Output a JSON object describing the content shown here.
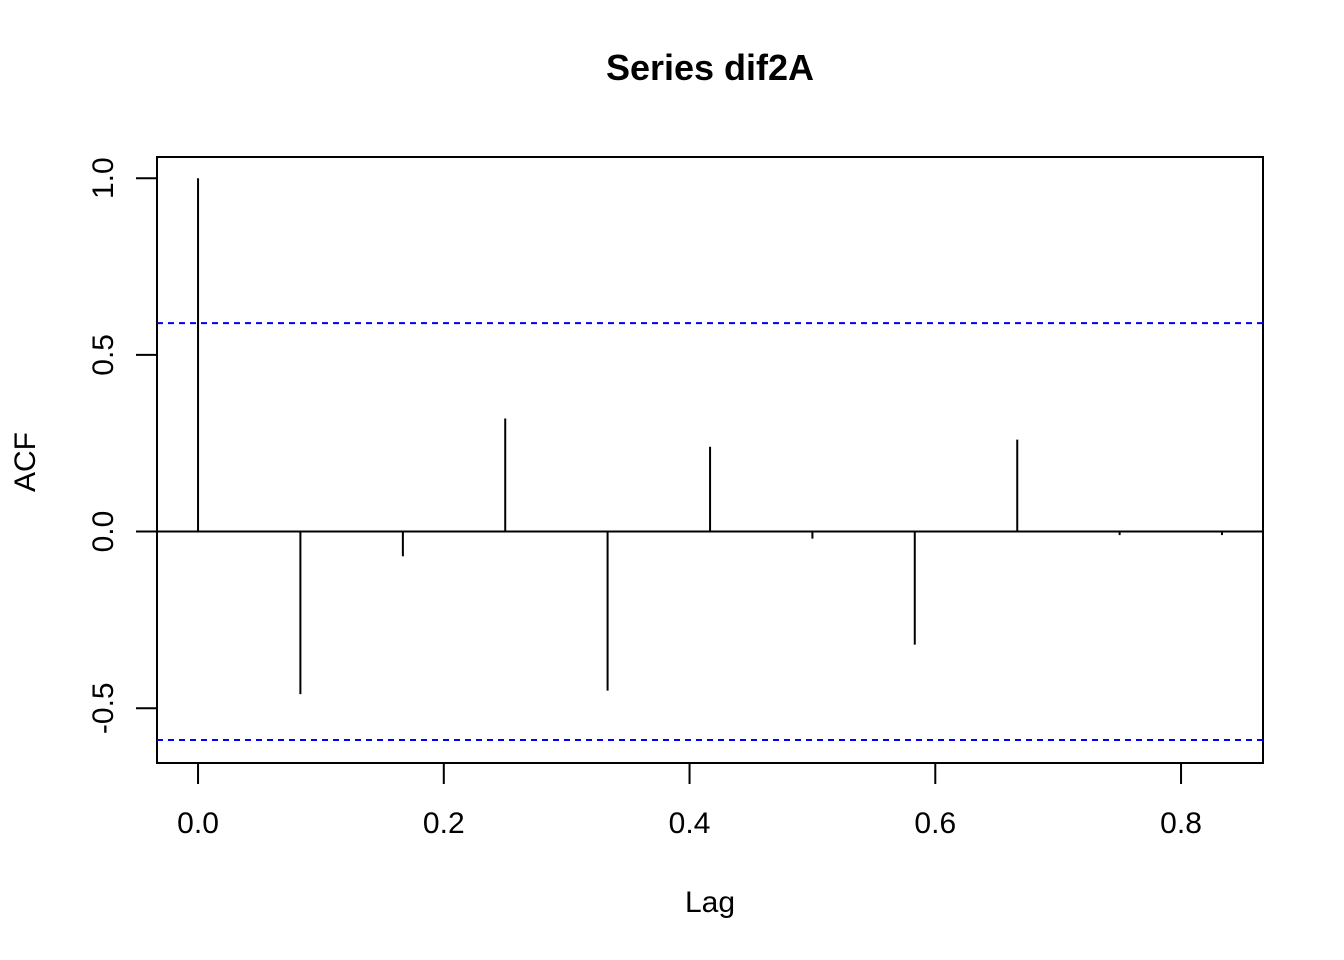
{
  "chart_data": {
    "type": "acf",
    "title": "Series  dif2A",
    "xlabel": "Lag",
    "ylabel": "ACF",
    "xlim": [
      -0.0334,
      0.8667
    ],
    "ylim": [
      -0.655,
      1.06
    ],
    "x_ticks": [
      0.0,
      0.2,
      0.4,
      0.6,
      0.8
    ],
    "x_tick_labels": [
      "0.0",
      "0.2",
      "0.4",
      "0.6",
      "0.8"
    ],
    "y_ticks": [
      -0.5,
      0.0,
      0.5,
      1.0
    ],
    "y_tick_labels": [
      "-0.5",
      "0.0",
      "0.5",
      "1.0"
    ],
    "lags": [
      0.0,
      0.0833,
      0.1667,
      0.25,
      0.3333,
      0.4167,
      0.5,
      0.5833,
      0.6667,
      0.75,
      0.8333
    ],
    "acf": [
      1.0,
      -0.46,
      -0.07,
      0.32,
      -0.45,
      0.24,
      -0.02,
      -0.32,
      0.26,
      -0.01,
      -0.01
    ],
    "confidence_limit": 0.59,
    "confidence_color": "#0000ff",
    "bar_color": "#000000",
    "grid": false,
    "legend": "none"
  }
}
